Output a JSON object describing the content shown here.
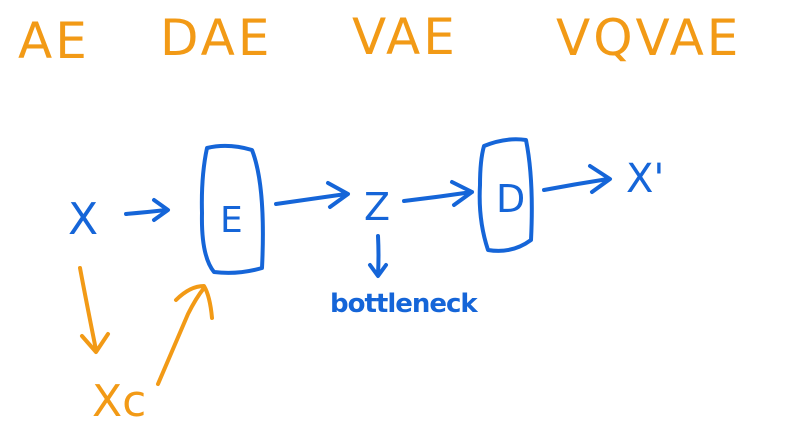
{
  "colors": {
    "background": "#ffffff",
    "orange": "#f29a16",
    "blue": "#1565d8"
  },
  "titles": [
    "AE",
    "DAE",
    "VAE",
    "VQVAE"
  ],
  "diagram": {
    "input": "X",
    "encoder": "E",
    "latent": "Z",
    "decoder": "D",
    "output": "X'",
    "corrupted_input": "Xc",
    "latent_note": "bottleneck"
  }
}
